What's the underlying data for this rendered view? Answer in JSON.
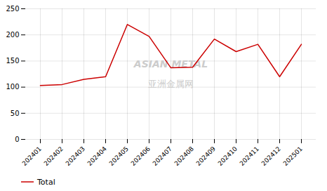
{
  "chart_data": {
    "type": "line",
    "categories": [
      "202401",
      "202402",
      "202403",
      "202404",
      "202405",
      "202406",
      "202407",
      "202408",
      "202409",
      "202410",
      "202411",
      "202412",
      "202501"
    ],
    "series": [
      {
        "name": "Total",
        "color": "#cc0000",
        "values": [
          103,
          105,
          115,
          120,
          220,
          197,
          137,
          138,
          192,
          168,
          182,
          120,
          182
        ]
      }
    ],
    "ylim": [
      0,
      250
    ],
    "yticks": [
      0,
      50,
      100,
      150,
      200,
      250
    ],
    "grid": true,
    "legend": "bottom",
    "annotations": [
      "ASIAN METAL",
      "亚洲金属网"
    ]
  }
}
